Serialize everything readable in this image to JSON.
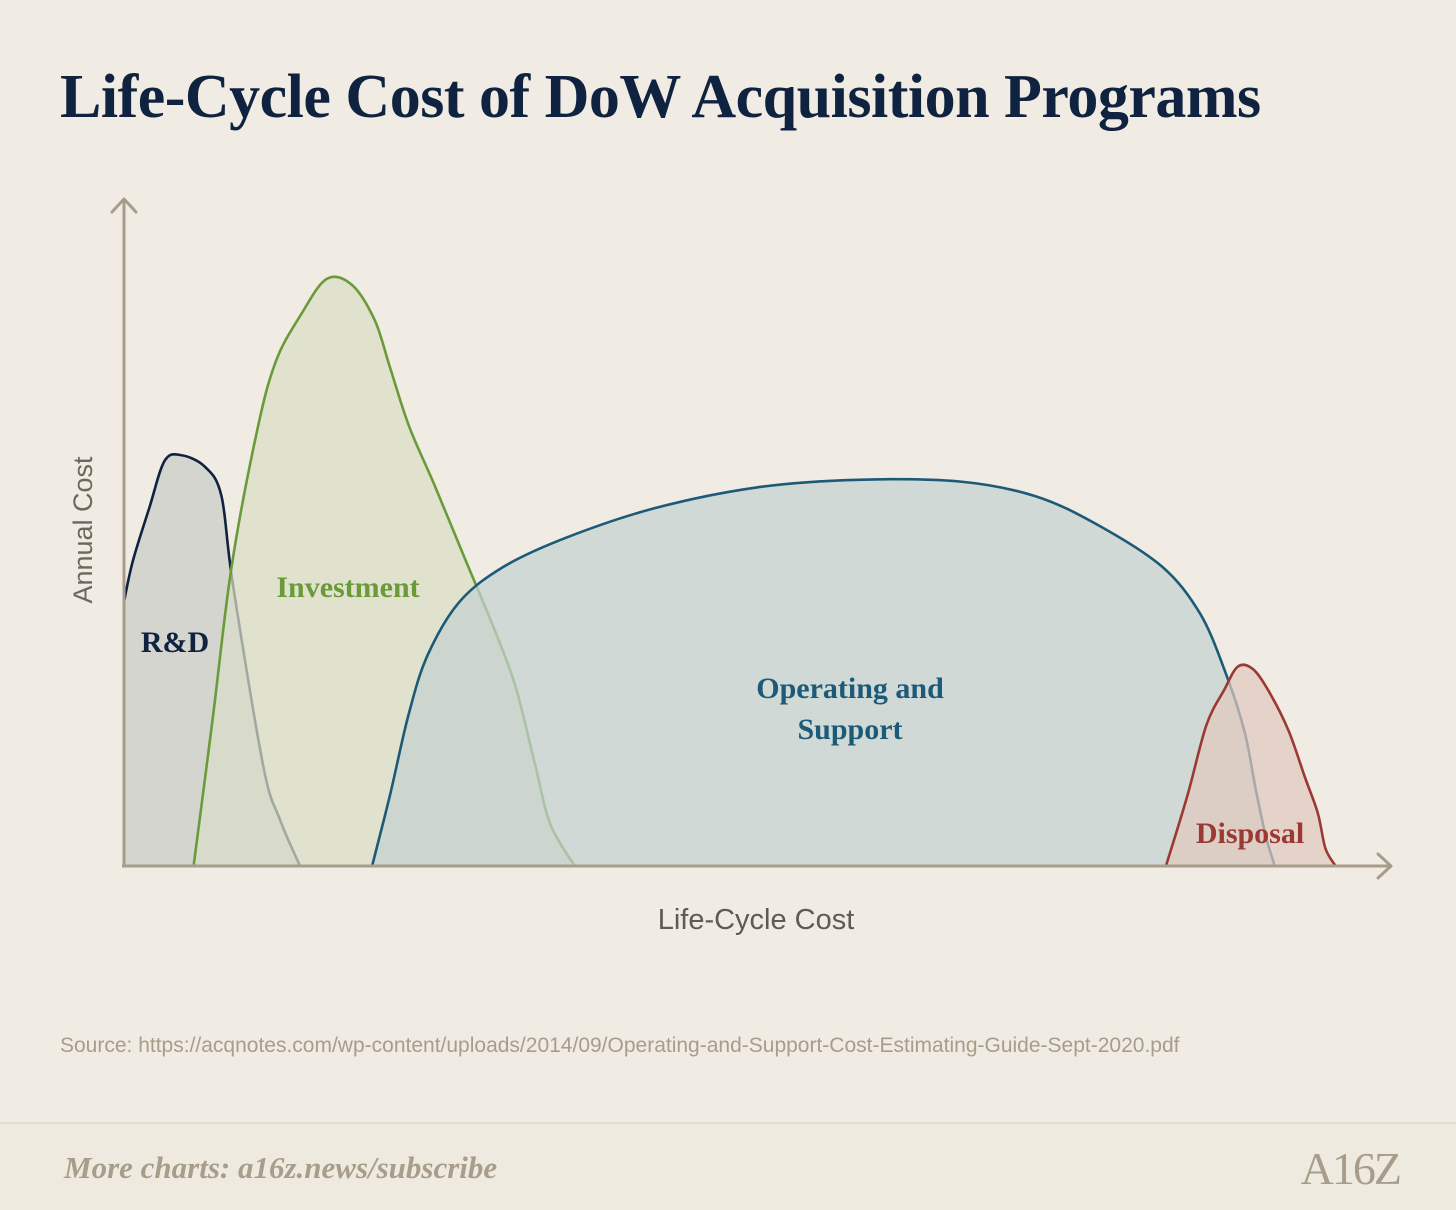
{
  "title": "Life-Cycle Cost of DoW Acquisition Programs",
  "chart_data": {
    "type": "area",
    "title": "Life-Cycle Cost of DoW Acquisition Programs",
    "xlabel": "Life-Cycle Cost",
    "ylabel": "Annual Cost",
    "xlim": [
      0,
      100
    ],
    "ylim": [
      0,
      100
    ],
    "grid": false,
    "ticks": "none",
    "series": [
      {
        "name": "R&D",
        "label": "R&D",
        "color": "#0f2240",
        "fill": "#cbccc9",
        "x": [
          0,
          0.7,
          2,
          3.2,
          4.5,
          6.4,
          7.7,
          8.6,
          11,
          12.3,
          13.9
        ],
        "y": [
          45,
          52,
          61,
          69,
          70,
          68,
          63,
          48,
          17,
          8,
          0
        ]
      },
      {
        "name": "Investment",
        "label": "Investment",
        "color": "#6b9a3a",
        "fill": "#d9dec6",
        "x": [
          5.5,
          7,
          8.5,
          10.5,
          12,
          14,
          16,
          18,
          19.8,
          21,
          22.5,
          24.5,
          27,
          29.5,
          31,
          32.5,
          33.7,
          35.6
        ],
        "y": [
          0,
          25,
          51,
          74,
          86,
          94,
          100,
          99,
          93,
          85,
          75,
          65,
          52,
          39,
          30,
          17,
          7,
          0
        ]
      },
      {
        "name": "Operating and Support",
        "label": "Operating and Support",
        "color": "#1c5a78",
        "fill": "#c4d1d0",
        "x": [
          19.6,
          21,
          22.5,
          24,
          26.5,
          30,
          35,
          42,
          50,
          58,
          66,
          72,
          77,
          82,
          85,
          87,
          88.5,
          89.4,
          90.2,
          90.9
        ],
        "y": [
          0,
          12,
          26,
          36,
          45,
          51,
          56,
          61,
          64.5,
          65.8,
          65.5,
          63,
          58,
          51,
          43,
          33,
          23,
          13,
          5,
          0
        ]
      },
      {
        "name": "Disposal",
        "label": "Disposal",
        "color": "#9a3a33",
        "fill": "#e0c8bf",
        "x": [
          82.3,
          84,
          85.5,
          86.9,
          88,
          89.2,
          90.5,
          92,
          93.3,
          94.3,
          94.9,
          95.7
        ],
        "y": [
          0,
          12,
          24,
          30,
          34,
          33.5,
          29.5,
          23,
          15,
          9,
          3,
          0
        ]
      }
    ]
  },
  "source": "Source: https://acqnotes.com/wp-content/uploads/2014/09/Operating-and-Support-Cost-Estimating-Guide-Sept-2020.pdf",
  "footer": {
    "text": "More charts: a16z.news/subscribe",
    "logo": "A16Z"
  }
}
